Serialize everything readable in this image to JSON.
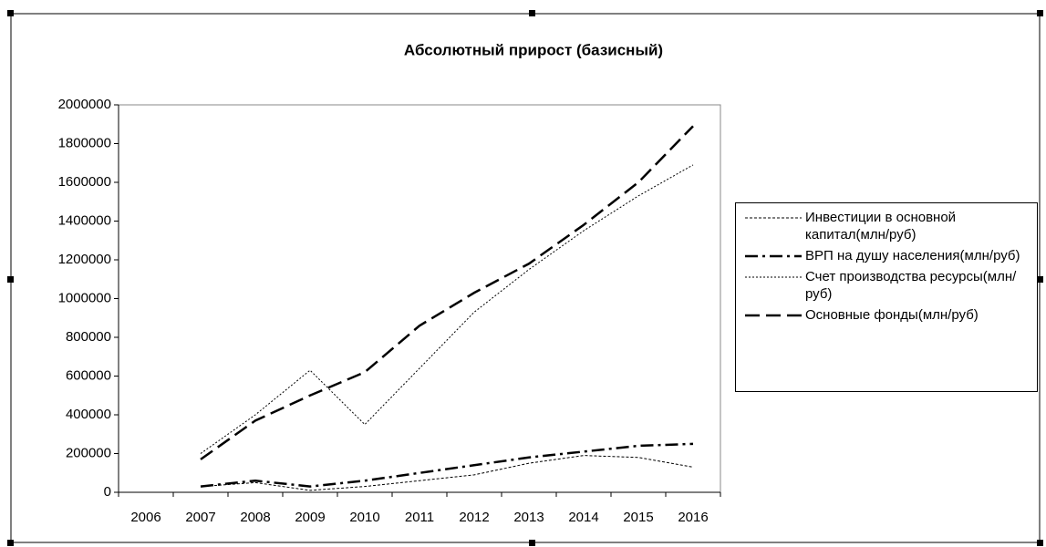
{
  "chart_data": {
    "type": "line",
    "title": "Абсолютный прирост (базисный)",
    "categories": [
      "2006",
      "2007",
      "2008",
      "2009",
      "2010",
      "2011",
      "2012",
      "2013",
      "2014",
      "2015",
      "2016"
    ],
    "series": [
      {
        "name": "Инвестиции в основной капитал(млн/руб)",
        "color": "#000000",
        "dash": "3,2",
        "width": 1,
        "values": [
          null,
          30000,
          50000,
          10000,
          30000,
          60000,
          90000,
          150000,
          190000,
          180000,
          130000
        ]
      },
      {
        "name": "ВРП на душу населения(млн/руб)",
        "color": "#000000",
        "dash": "14,5,3,5",
        "width": 2.5,
        "values": [
          null,
          30000,
          60000,
          30000,
          60000,
          100000,
          140000,
          180000,
          210000,
          240000,
          250000
        ]
      },
      {
        "name": "Счет производства ресурсы(млн/руб)",
        "color": "#000000",
        "dash": "2,2",
        "width": 1,
        "values": [
          null,
          200000,
          400000,
          630000,
          350000,
          640000,
          930000,
          1150000,
          1350000,
          1530000,
          1690000
        ]
      },
      {
        "name": "Основные фонды(млн/руб)",
        "color": "#000000",
        "dash": "16,7",
        "width": 2.5,
        "values": [
          null,
          170000,
          370000,
          500000,
          620000,
          860000,
          1030000,
          1180000,
          1380000,
          1600000,
          1890000
        ]
      }
    ],
    "ylim": [
      0,
      2000000
    ],
    "yticks": [
      0,
      200000,
      400000,
      600000,
      800000,
      1000000,
      1200000,
      1400000,
      1600000,
      1800000,
      2000000
    ],
    "legend": "right"
  }
}
